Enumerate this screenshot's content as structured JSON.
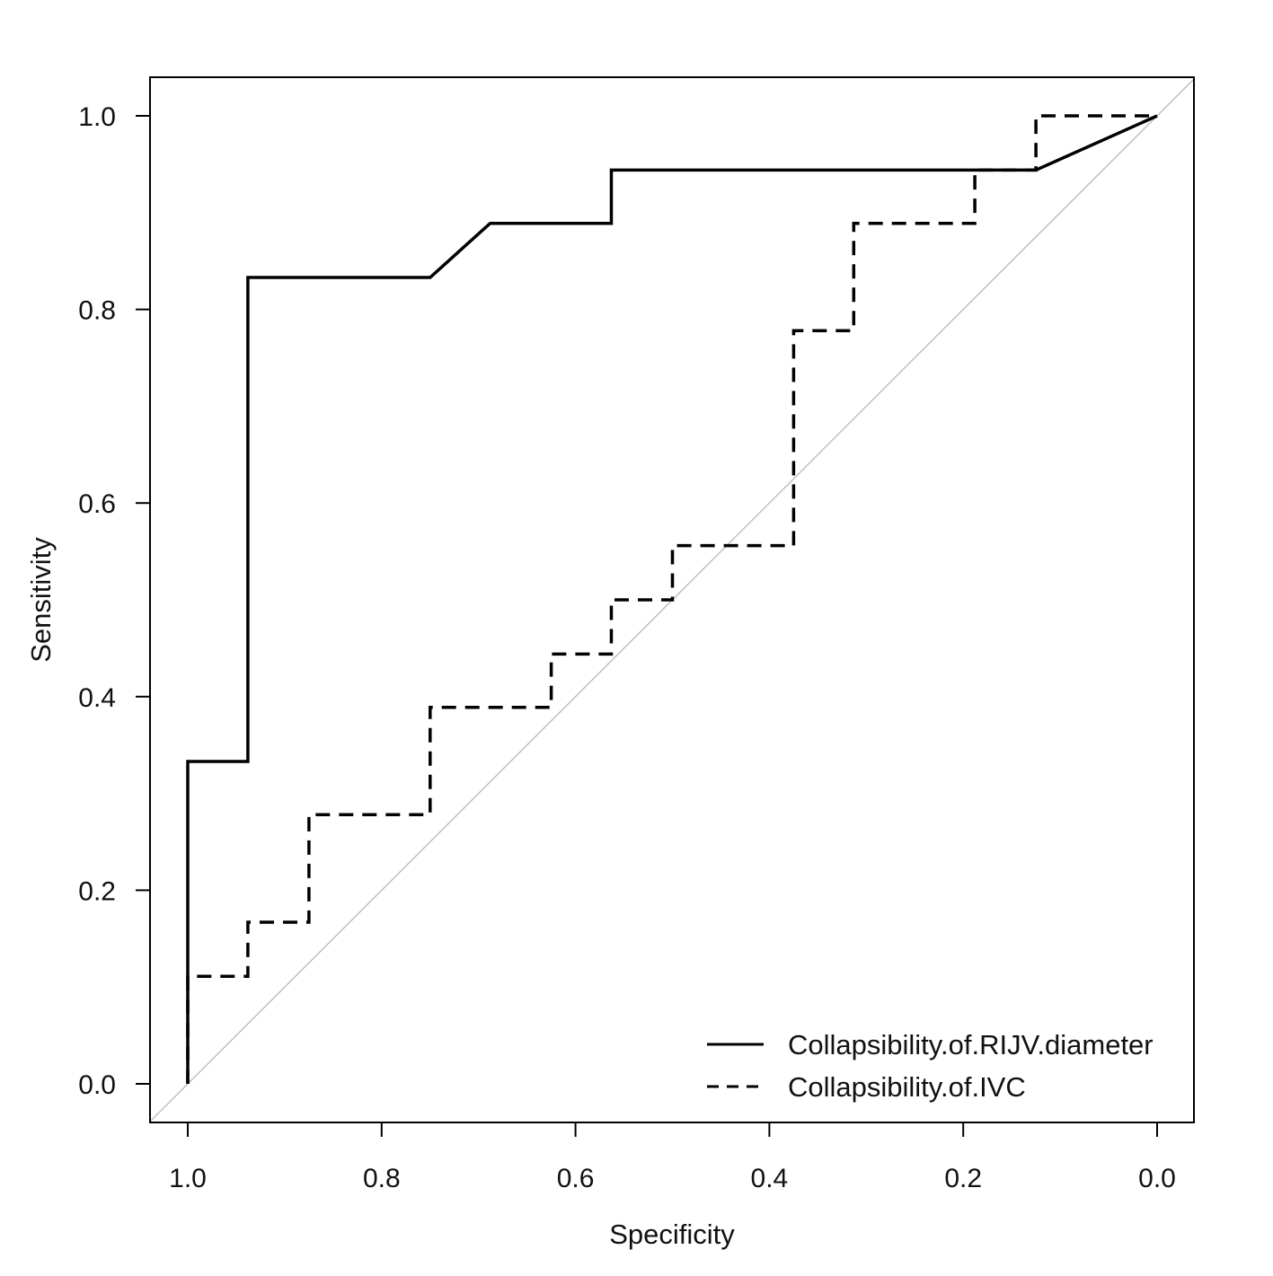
{
  "chart_data": {
    "type": "line",
    "title": "",
    "xlabel": "Specificity",
    "ylabel": "Sensitivity",
    "xlim": [
      1.0,
      0.0
    ],
    "ylim": [
      0.0,
      1.0
    ],
    "x_reversed": true,
    "x_ticks": [
      "1.0",
      "0.8",
      "0.6",
      "0.4",
      "0.2",
      "0.0"
    ],
    "y_ticks": [
      "0.0",
      "0.2",
      "0.4",
      "0.6",
      "0.8",
      "1.0"
    ],
    "grid": false,
    "legend_position": "bottom-right",
    "reference_line": {
      "from": [
        1.0,
        0.0
      ],
      "to": [
        0.0,
        1.0
      ],
      "color": "#c0c0c0"
    },
    "series": [
      {
        "name": "Collapsibility.of.RIJV.diameter",
        "style": "solid",
        "color": "#000000",
        "points": [
          [
            1.0,
            0.0
          ],
          [
            1.0,
            0.333
          ],
          [
            0.938,
            0.333
          ],
          [
            0.938,
            0.833
          ],
          [
            0.75,
            0.833
          ],
          [
            0.688,
            0.889
          ],
          [
            0.563,
            0.889
          ],
          [
            0.563,
            0.944
          ],
          [
            0.125,
            0.944
          ],
          [
            0.0,
            1.0
          ]
        ]
      },
      {
        "name": "Collapsibility.of.IVC",
        "style": "dashed",
        "color": "#000000",
        "points": [
          [
            1.0,
            0.0
          ],
          [
            1.0,
            0.111
          ],
          [
            0.938,
            0.111
          ],
          [
            0.938,
            0.167
          ],
          [
            0.875,
            0.167
          ],
          [
            0.875,
            0.278
          ],
          [
            0.75,
            0.278
          ],
          [
            0.75,
            0.389
          ],
          [
            0.625,
            0.389
          ],
          [
            0.625,
            0.444
          ],
          [
            0.563,
            0.444
          ],
          [
            0.563,
            0.5
          ],
          [
            0.5,
            0.5
          ],
          [
            0.5,
            0.556
          ],
          [
            0.375,
            0.556
          ],
          [
            0.375,
            0.778
          ],
          [
            0.313,
            0.778
          ],
          [
            0.313,
            0.889
          ],
          [
            0.188,
            0.889
          ],
          [
            0.188,
            0.944
          ],
          [
            0.125,
            0.944
          ],
          [
            0.125,
            1.0
          ],
          [
            0.0,
            1.0
          ]
        ]
      }
    ]
  }
}
